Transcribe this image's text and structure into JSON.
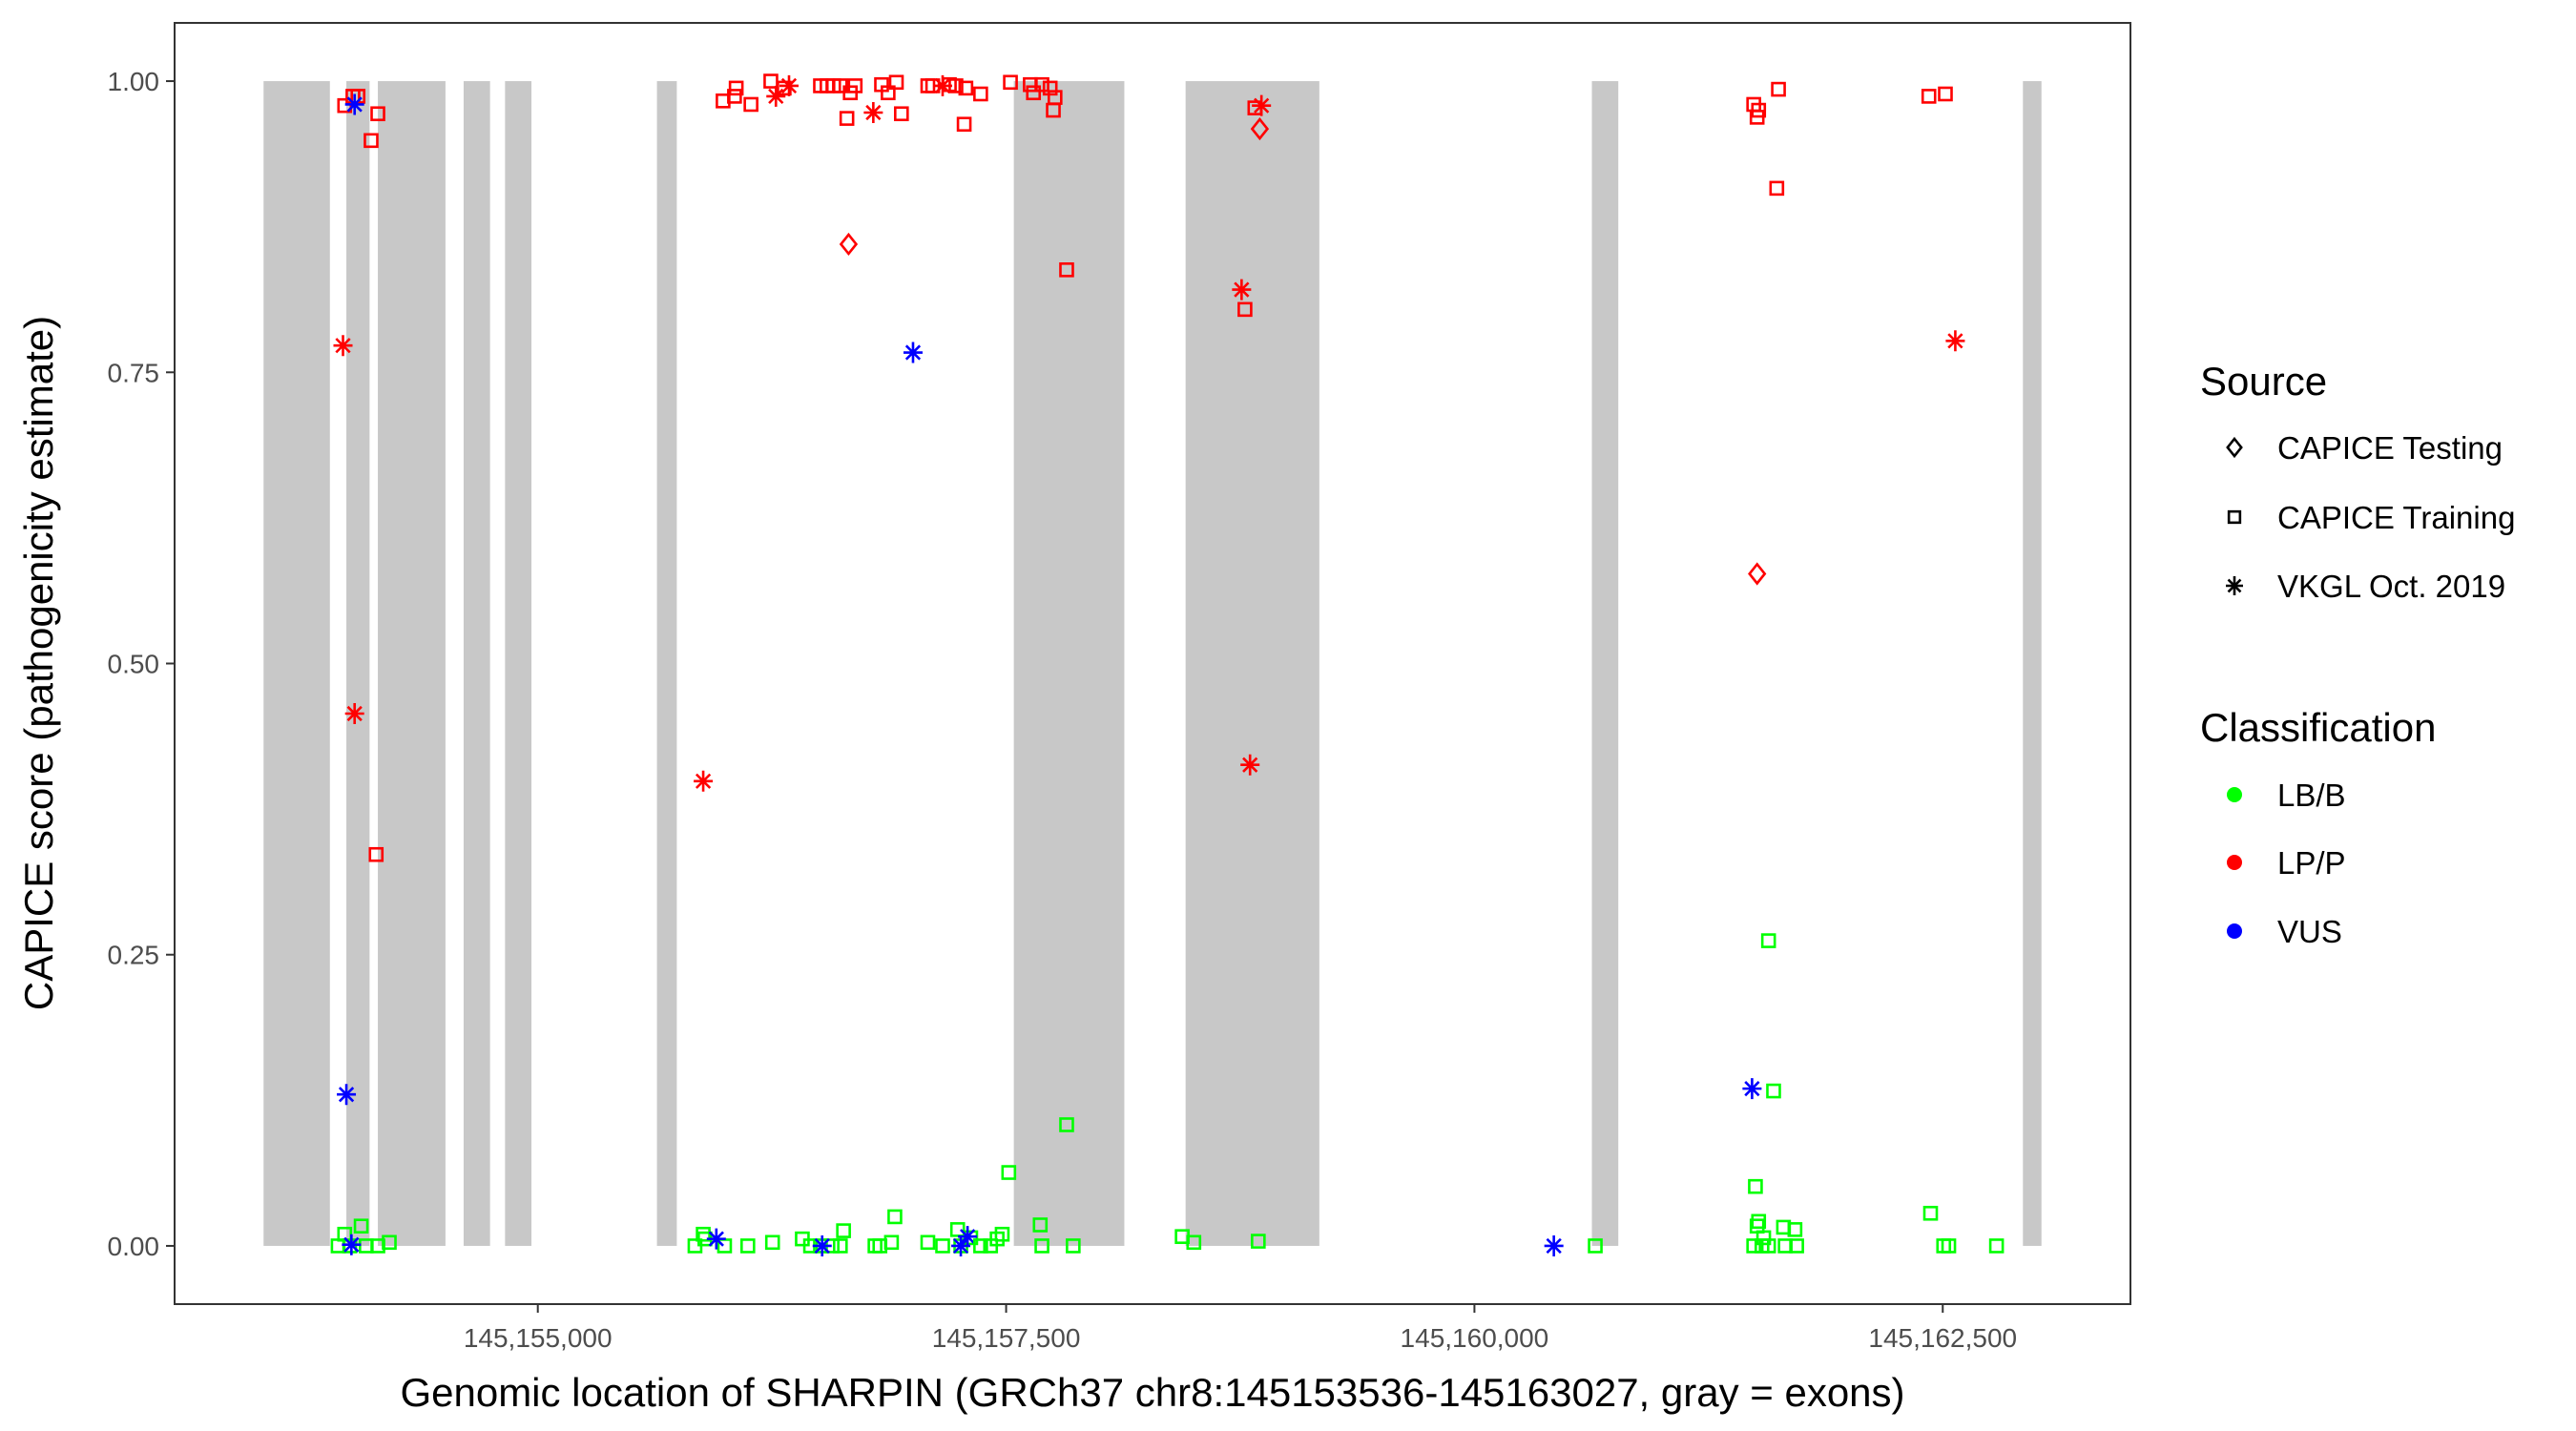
{
  "chart_data": {
    "type": "scatter",
    "title": "",
    "xlabel": "Genomic location of SHARPIN (GRCh37 chr8:145153536-145163027, gray = exons)",
    "ylabel": "CAPICE score (pathogenicity estimate)",
    "xlim": [
      145153061,
      145163502
    ],
    "ylim": [
      -0.05,
      1.05
    ],
    "grid": false,
    "x_ticks": [
      145155000,
      145157500,
      145160000,
      145162500
    ],
    "x_tick_labels": [
      "145,155,000",
      "145,157,500",
      "145,160,000",
      "145,162,500"
    ],
    "y_ticks": [
      0,
      0.25,
      0.5,
      0.75,
      1.0
    ],
    "y_tick_labels": [
      "0.00",
      "0.25",
      "0.50",
      "0.75",
      "1.00"
    ],
    "exons": [
      [
        145153536,
        145153890
      ],
      [
        145153978,
        145154102
      ],
      [
        145154146,
        145154507
      ],
      [
        145154604,
        145154745
      ],
      [
        145154825,
        145154966
      ],
      [
        145155636,
        145155742
      ],
      [
        145157541,
        145158131
      ],
      [
        145158458,
        145159172
      ],
      [
        145160627,
        145160768
      ],
      [
        145162928,
        145163027
      ]
    ],
    "colors": {
      "LB/B": "#00ff00",
      "LP/P": "#ff0000",
      "VUS": "#0000ff",
      "exon": "#c8c8c8"
    },
    "legend": {
      "placement": "right",
      "source_title": "Source",
      "source_items": [
        "CAPICE Testing",
        "CAPICE Training",
        "VKGL Oct. 2019"
      ],
      "class_title": "Classification",
      "class_items": [
        "LB/B",
        "LP/P",
        "VUS"
      ]
    },
    "points": [
      [
        145153969,
        0.979,
        "CAPICE Training",
        "LP/P"
      ],
      [
        145154013,
        0.987,
        "CAPICE Training",
        "LP/P"
      ],
      [
        145154040,
        0.987,
        "CAPICE Training",
        "LP/P"
      ],
      [
        145154146,
        0.972,
        "CAPICE Training",
        "LP/P"
      ],
      [
        145154110,
        0.949,
        "CAPICE Training",
        "LP/P"
      ],
      [
        145153960,
        0.773,
        "VKGL Oct. 2019",
        "LP/P"
      ],
      [
        145154022,
        0.457,
        "VKGL Oct. 2019",
        "LP/P"
      ],
      [
        145154137,
        0.336,
        "CAPICE Training",
        "LP/P"
      ],
      [
        145154022,
        0.98,
        "VKGL Oct. 2019",
        "VUS"
      ],
      [
        145155989,
        0.983,
        "CAPICE Training",
        "LP/P"
      ],
      [
        145156059,
        0.994,
        "CAPICE Training",
        "LP/P"
      ],
      [
        145156050,
        0.987,
        "CAPICE Training",
        "LP/P"
      ],
      [
        145156138,
        0.98,
        "CAPICE Training",
        "LP/P"
      ],
      [
        145156244,
        1.0,
        "CAPICE Training",
        "LP/P"
      ],
      [
        145156271,
        0.987,
        "VKGL Oct. 2019",
        "LP/P"
      ],
      [
        145156315,
        0.994,
        "CAPICE Training",
        "LP/P"
      ],
      [
        145156341,
        0.996,
        "VKGL Oct. 2019",
        "LP/P"
      ],
      [
        145156509,
        0.996,
        "CAPICE Training",
        "LP/P"
      ],
      [
        145156544,
        0.996,
        "CAPICE Training",
        "LP/P"
      ],
      [
        145156579,
        0.996,
        "CAPICE Training",
        "LP/P"
      ],
      [
        145156615,
        0.996,
        "CAPICE Training",
        "LP/P"
      ],
      [
        145156650,
        0.968,
        "CAPICE Training",
        "LP/P"
      ],
      [
        145156668,
        0.99,
        "CAPICE Training",
        "LP/P"
      ],
      [
        145156694,
        0.996,
        "CAPICE Training",
        "LP/P"
      ],
      [
        145156791,
        0.973,
        "VKGL Oct. 2019",
        "LP/P"
      ],
      [
        145156835,
        0.997,
        "CAPICE Training",
        "LP/P"
      ],
      [
        145156870,
        0.99,
        "CAPICE Training",
        "LP/P"
      ],
      [
        145156914,
        0.999,
        "CAPICE Training",
        "LP/P"
      ],
      [
        145156941,
        0.972,
        "CAPICE Training",
        "LP/P"
      ],
      [
        145157082,
        0.996,
        "CAPICE Training",
        "LP/P"
      ],
      [
        145157108,
        0.996,
        "CAPICE Training",
        "LP/P"
      ],
      [
        145157161,
        0.996,
        "VKGL Oct. 2019",
        "LP/P"
      ],
      [
        145157197,
        0.997,
        "CAPICE Training",
        "LP/P"
      ],
      [
        145157232,
        0.996,
        "CAPICE Training",
        "LP/P"
      ],
      [
        145157276,
        0.963,
        "CAPICE Training",
        "LP/P"
      ],
      [
        145157285,
        0.994,
        "CAPICE Training",
        "LP/P"
      ],
      [
        145157364,
        0.989,
        "CAPICE Training",
        "LP/P"
      ],
      [
        145157523,
        0.999,
        "CAPICE Training",
        "LP/P"
      ],
      [
        145157629,
        0.997,
        "CAPICE Training",
        "LP/P"
      ],
      [
        145157646,
        0.99,
        "CAPICE Training",
        "LP/P"
      ],
      [
        145157691,
        0.997,
        "CAPICE Training",
        "LP/P"
      ],
      [
        145157735,
        0.994,
        "CAPICE Training",
        "LP/P"
      ],
      [
        145157752,
        0.975,
        "CAPICE Training",
        "LP/P"
      ],
      [
        145157761,
        0.986,
        "CAPICE Training",
        "LP/P"
      ],
      [
        145157823,
        0.838,
        "CAPICE Training",
        "LP/P"
      ],
      [
        145156659,
        0.86,
        "CAPICE Testing",
        "LP/P"
      ],
      [
        145157003,
        0.767,
        "VKGL Oct. 2019",
        "VUS"
      ],
      [
        145155883,
        0.399,
        "VKGL Oct. 2019",
        "LP/P"
      ],
      [
        145158757,
        0.821,
        "VKGL Oct. 2019",
        "LP/P"
      ],
      [
        145158775,
        0.804,
        "CAPICE Training",
        "LP/P"
      ],
      [
        145158802,
        0.413,
        "VKGL Oct. 2019",
        "LP/P"
      ],
      [
        145158828,
        0.977,
        "CAPICE Training",
        "LP/P"
      ],
      [
        145158863,
        0.979,
        "VKGL Oct. 2019",
        "LP/P"
      ],
      [
        145158854,
        0.959,
        "CAPICE Testing",
        "LP/P"
      ],
      [
        145161491,
        0.98,
        "CAPICE Training",
        "LP/P"
      ],
      [
        145161517,
        0.975,
        "CAPICE Training",
        "LP/P"
      ],
      [
        145161509,
        0.969,
        "CAPICE Training",
        "LP/P"
      ],
      [
        145161623,
        0.993,
        "CAPICE Training",
        "LP/P"
      ],
      [
        145161614,
        0.908,
        "CAPICE Training",
        "LP/P"
      ],
      [
        145162426,
        0.987,
        "CAPICE Training",
        "LP/P"
      ],
      [
        145162514,
        0.989,
        "CAPICE Training",
        "LP/P"
      ],
      [
        145162567,
        0.777,
        "VKGL Oct. 2019",
        "LP/P"
      ],
      [
        145161509,
        0.577,
        "CAPICE Testing",
        "LP/P"
      ],
      [
        145161482,
        0.135,
        "VKGL Oct. 2019",
        "VUS"
      ],
      [
        145160424,
        0.0,
        "VKGL Oct. 2019",
        "VUS"
      ],
      [
        145153934,
        0.0,
        "CAPICE Training",
        "LB/B"
      ],
      [
        145153969,
        0.01,
        "CAPICE Training",
        "LB/B"
      ],
      [
        145153996,
        0.0,
        "CAPICE Training",
        "LB/B"
      ],
      [
        145154057,
        0.017,
        "CAPICE Training",
        "LB/B"
      ],
      [
        145154084,
        0.0,
        "CAPICE Training",
        "LB/B"
      ],
      [
        145154146,
        0.0,
        "CAPICE Training",
        "LB/B"
      ],
      [
        145154207,
        0.003,
        "CAPICE Training",
        "LB/B"
      ],
      [
        145154005,
        0.001,
        "VKGL Oct. 2019",
        "VUS"
      ],
      [
        145153978,
        0.13,
        "VKGL Oct. 2019",
        "VUS"
      ],
      [
        145155839,
        0.0,
        "CAPICE Training",
        "LB/B"
      ],
      [
        145155883,
        0.01,
        "CAPICE Training",
        "LB/B"
      ],
      [
        145155892,
        0.006,
        "CAPICE Training",
        "LB/B"
      ],
      [
        145155997,
        0.0,
        "CAPICE Training",
        "LB/B"
      ],
      [
        145156121,
        0.0,
        "CAPICE Training",
        "LB/B"
      ],
      [
        145156253,
        0.003,
        "CAPICE Training",
        "LB/B"
      ],
      [
        145155953,
        0.006,
        "VKGL Oct. 2019",
        "VUS"
      ],
      [
        145156412,
        0.006,
        "CAPICE Training",
        "LB/B"
      ],
      [
        145156456,
        0.0,
        "CAPICE Training",
        "LB/B"
      ],
      [
        145156509,
        0.0,
        "CAPICE Training",
        "LB/B"
      ],
      [
        145156571,
        0.0,
        "CAPICE Training",
        "LB/B"
      ],
      [
        145156615,
        0.0,
        "CAPICE Training",
        "LB/B"
      ],
      [
        145156632,
        0.013,
        "CAPICE Training",
        "LB/B"
      ],
      [
        145156518,
        0.0,
        "VKGL Oct. 2019",
        "VUS"
      ],
      [
        145156800,
        0.0,
        "CAPICE Training",
        "LB/B"
      ],
      [
        145156826,
        0.0,
        "CAPICE Training",
        "LB/B"
      ],
      [
        145156888,
        0.003,
        "CAPICE Training",
        "LB/B"
      ],
      [
        145156906,
        0.025,
        "CAPICE Training",
        "LB/B"
      ],
      [
        145157082,
        0.003,
        "CAPICE Training",
        "LB/B"
      ],
      [
        145157161,
        0.0,
        "CAPICE Training",
        "LB/B"
      ],
      [
        145157241,
        0.014,
        "CAPICE Training",
        "LB/B"
      ],
      [
        145157258,
        0.0,
        "CAPICE Training",
        "LB/B"
      ],
      [
        145157311,
        0.007,
        "CAPICE Training",
        "LB/B"
      ],
      [
        145157258,
        0.0,
        "VKGL Oct. 2019",
        "VUS"
      ],
      [
        145157294,
        0.008,
        "VKGL Oct. 2019",
        "VUS"
      ],
      [
        145157364,
        0.0,
        "CAPICE Training",
        "LB/B"
      ],
      [
        145157417,
        0.0,
        "CAPICE Training",
        "LB/B"
      ],
      [
        145157452,
        0.006,
        "CAPICE Training",
        "LB/B"
      ],
      [
        145157479,
        0.01,
        "CAPICE Training",
        "LB/B"
      ],
      [
        145157514,
        0.063,
        "CAPICE Training",
        "LB/B"
      ],
      [
        145157682,
        0.018,
        "CAPICE Training",
        "LB/B"
      ],
      [
        145157691,
        0.0,
        "CAPICE Training",
        "LB/B"
      ],
      [
        145157858,
        0.0,
        "CAPICE Training",
        "LB/B"
      ],
      [
        145157823,
        0.104,
        "CAPICE Training",
        "LB/B"
      ],
      [
        145158440,
        0.008,
        "CAPICE Training",
        "LB/B"
      ],
      [
        145158502,
        0.003,
        "CAPICE Training",
        "LB/B"
      ],
      [
        145158846,
        0.004,
        "CAPICE Training",
        "LB/B"
      ],
      [
        145160645,
        0.0,
        "CAPICE Training",
        "LB/B"
      ],
      [
        145161500,
        0.051,
        "CAPICE Training",
        "LB/B"
      ],
      [
        145161491,
        0.0,
        "CAPICE Training",
        "LB/B"
      ],
      [
        145161517,
        0.021,
        "CAPICE Training",
        "LB/B"
      ],
      [
        145161509,
        0.017,
        "CAPICE Training",
        "LB/B"
      ],
      [
        145161535,
        0.0,
        "CAPICE Training",
        "LB/B"
      ],
      [
        145161544,
        0.007,
        "CAPICE Training",
        "LB/B"
      ],
      [
        145161570,
        0.0,
        "CAPICE Training",
        "LB/B"
      ],
      [
        145161570,
        0.262,
        "CAPICE Training",
        "LB/B"
      ],
      [
        145161597,
        0.133,
        "CAPICE Training",
        "LB/B"
      ],
      [
        145161650,
        0.016,
        "CAPICE Training",
        "LB/B"
      ],
      [
        145161659,
        0.0,
        "CAPICE Training",
        "LB/B"
      ],
      [
        145161711,
        0.014,
        "CAPICE Training",
        "LB/B"
      ],
      [
        145161720,
        0.0,
        "CAPICE Training",
        "LB/B"
      ],
      [
        145162435,
        0.028,
        "CAPICE Training",
        "LB/B"
      ],
      [
        145162505,
        0.0,
        "CAPICE Training",
        "LB/B"
      ],
      [
        145162532,
        0.0,
        "CAPICE Training",
        "LB/B"
      ],
      [
        145162787,
        0.0,
        "CAPICE Training",
        "LB/B"
      ]
    ]
  }
}
